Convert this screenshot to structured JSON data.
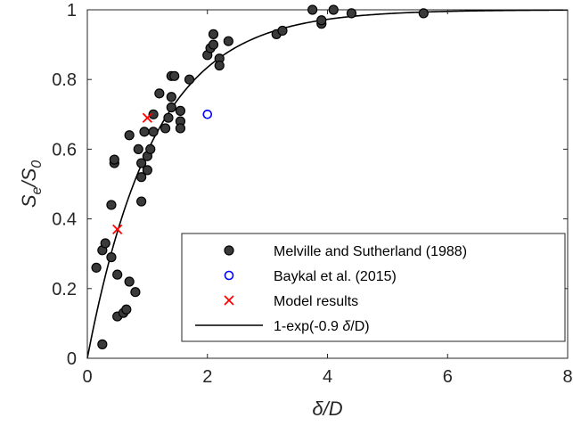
{
  "chart_data": {
    "type": "scatter",
    "xlabel": "δ/D",
    "ylabel": {
      "main": "S",
      "sub1": "e",
      "sep": "/S",
      "sub2": "0"
    },
    "xlim": [
      0,
      8
    ],
    "ylim": [
      0,
      1
    ],
    "x_ticks": [
      0,
      2,
      4,
      6,
      8
    ],
    "x_tick_labels": [
      "0",
      "2",
      "4",
      "6",
      "8"
    ],
    "y_ticks": [
      0,
      0.2,
      0.4,
      0.6,
      0.8,
      1
    ],
    "y_tick_labels": [
      "0",
      "0.2",
      "0.4",
      "0.6",
      "0.8",
      "1"
    ],
    "grid": false,
    "legend_position": "bottom-right",
    "series": [
      {
        "name": "Melville and Sutherland (1988)",
        "marker": "filled-circle",
        "color": "#000000",
        "points": [
          [
            0.15,
            0.26
          ],
          [
            0.25,
            0.04
          ],
          [
            0.25,
            0.31
          ],
          [
            0.3,
            0.33
          ],
          [
            0.4,
            0.29
          ],
          [
            0.4,
            0.44
          ],
          [
            0.45,
            0.56
          ],
          [
            0.45,
            0.57
          ],
          [
            0.5,
            0.24
          ],
          [
            0.5,
            0.12
          ],
          [
            0.6,
            0.13
          ],
          [
            0.65,
            0.14
          ],
          [
            0.7,
            0.22
          ],
          [
            0.7,
            0.64
          ],
          [
            0.8,
            0.19
          ],
          [
            0.85,
            0.6
          ],
          [
            0.9,
            0.45
          ],
          [
            0.9,
            0.52
          ],
          [
            0.9,
            0.56
          ],
          [
            0.95,
            0.65
          ],
          [
            1.0,
            0.54
          ],
          [
            1.0,
            0.58
          ],
          [
            1.05,
            0.6
          ],
          [
            1.1,
            0.65
          ],
          [
            1.1,
            0.7
          ],
          [
            1.2,
            0.76
          ],
          [
            1.3,
            0.66
          ],
          [
            1.35,
            0.69
          ],
          [
            1.4,
            0.72
          ],
          [
            1.4,
            0.75
          ],
          [
            1.4,
            0.81
          ],
          [
            1.45,
            0.81
          ],
          [
            1.55,
            0.68
          ],
          [
            1.55,
            0.71
          ],
          [
            1.55,
            0.66
          ],
          [
            1.7,
            0.8
          ],
          [
            2.0,
            0.87
          ],
          [
            2.05,
            0.89
          ],
          [
            2.1,
            0.93
          ],
          [
            2.1,
            0.9
          ],
          [
            2.2,
            0.86
          ],
          [
            2.2,
            0.84
          ],
          [
            2.35,
            0.91
          ],
          [
            3.15,
            0.93
          ],
          [
            3.25,
            0.94
          ],
          [
            3.75,
            1.0
          ],
          [
            3.9,
            0.96
          ],
          [
            3.9,
            0.97
          ],
          [
            4.1,
            1.0
          ],
          [
            4.4,
            0.99
          ],
          [
            5.6,
            0.99
          ]
        ]
      },
      {
        "name": "Baykal et al. (2015)",
        "marker": "open-circle",
        "color": "#0000ff",
        "points": [
          [
            2.0,
            0.7
          ]
        ]
      },
      {
        "name": "Model results",
        "marker": "x",
        "color": "#ff0000",
        "points": [
          [
            0.5,
            0.37
          ],
          [
            1.0,
            0.69
          ]
        ]
      },
      {
        "name": "1-exp(-0.9 δ/D)",
        "marker": "line",
        "color": "#000000",
        "function": "1-exp(-0.9*x)"
      }
    ],
    "legend_labels": [
      {
        "text": "Melville and Sutherland (1988)"
      },
      {
        "text": "Baykal et al. (2015)"
      },
      {
        "text": "Model results"
      },
      {
        "prefix": "1-exp(-0.9 ",
        "italic": "δ",
        "suffix": "/D)"
      }
    ]
  }
}
